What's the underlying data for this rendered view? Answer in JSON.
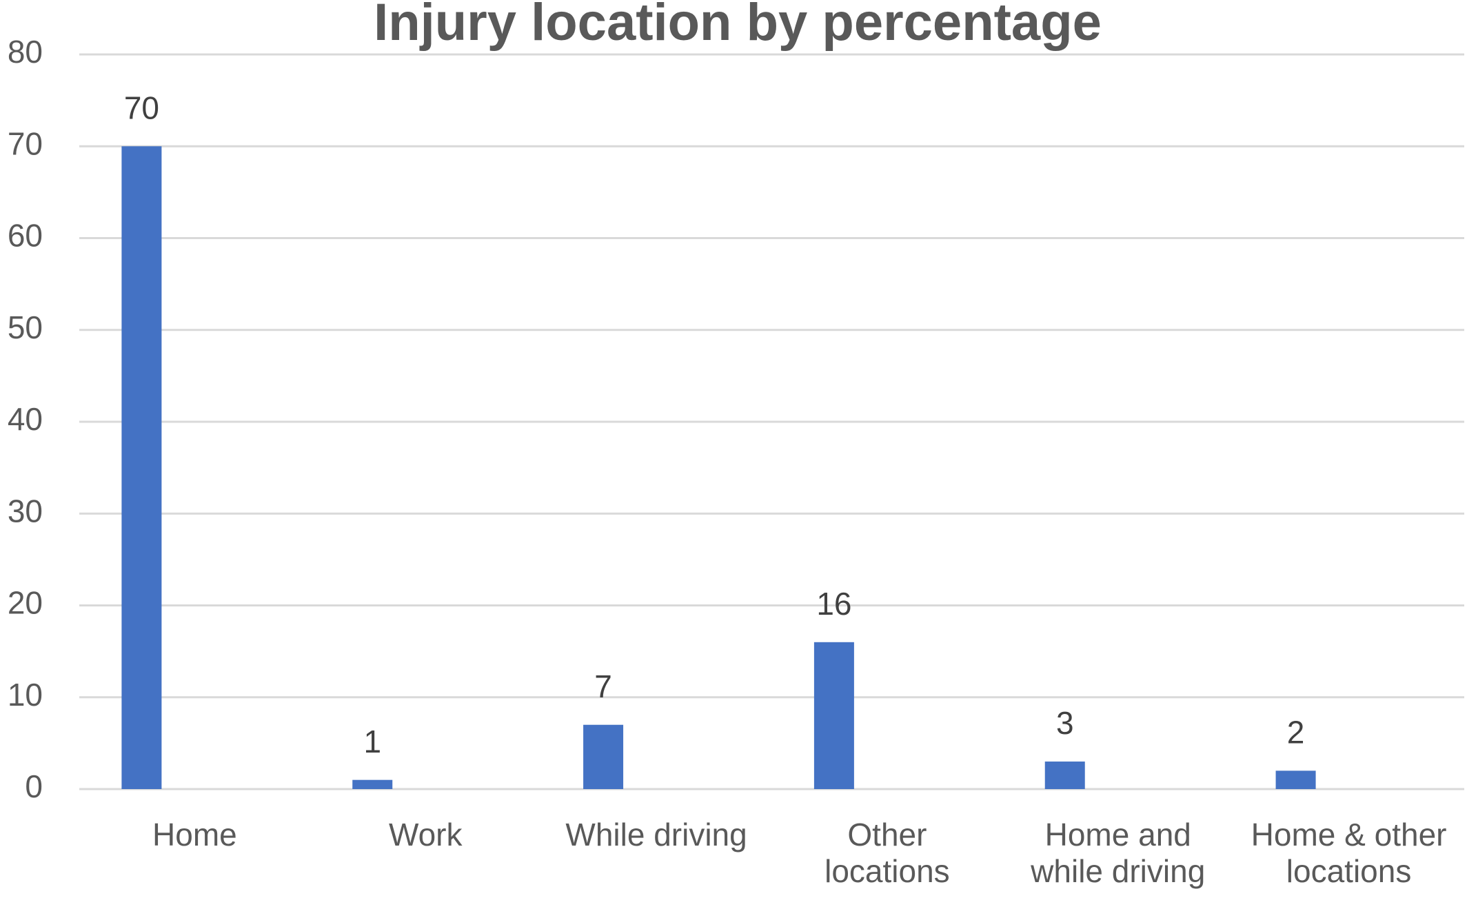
{
  "chart_data": {
    "type": "bar",
    "title": "Injury location by percentage",
    "categories": [
      "Home",
      "Work",
      "While driving",
      "Other\nlocations",
      "Home and\nwhile driving",
      "Home & other\nlocations"
    ],
    "values": [
      70,
      1,
      7,
      16,
      3,
      2
    ],
    "color": "#4472c4",
    "ylim": [
      0,
      80
    ],
    "yticks": [
      0,
      10,
      20,
      30,
      40,
      50,
      60,
      70,
      80
    ],
    "grid": true
  }
}
